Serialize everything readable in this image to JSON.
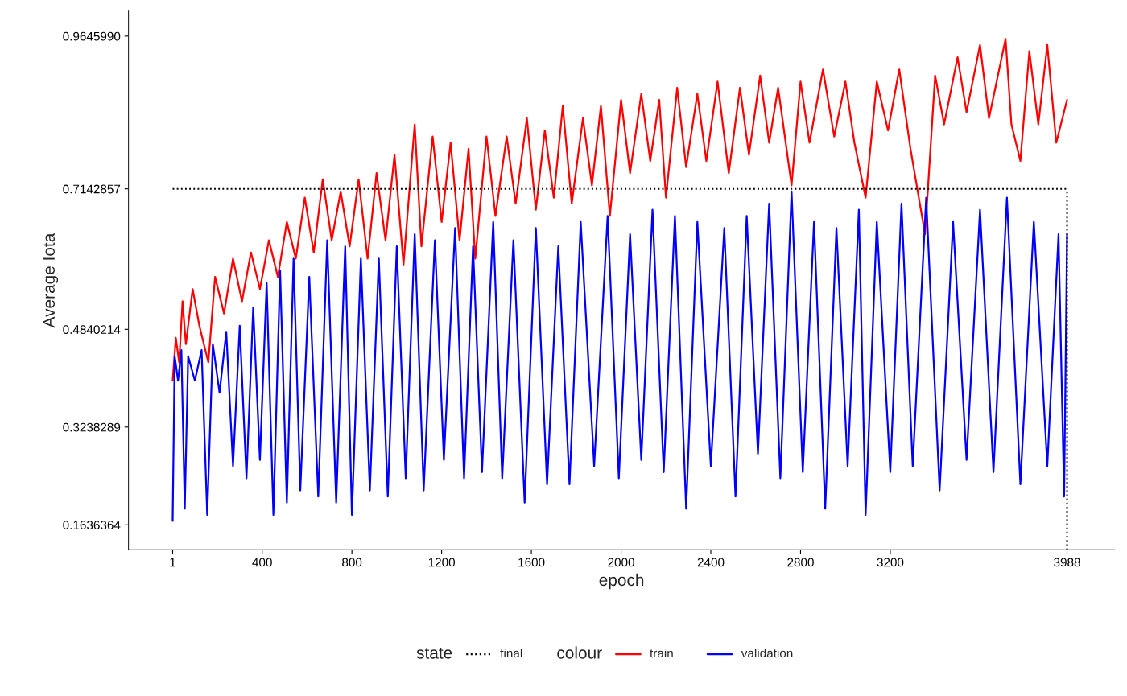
{
  "chart_data": {
    "type": "line",
    "xlabel": "epoch",
    "ylabel": "Average Iota",
    "legend_title": "colour",
    "annotations": [
      "state"
    ],
    "legend": "bottom",
    "grid": false,
    "line_style": "solid",
    "xlim": [
      -196,
      4200
    ],
    "ylim": [
      0.1227,
      1.0055
    ],
    "xticks": [
      1,
      400,
      800,
      1200,
      1600,
      2000,
      2400,
      2800,
      3200,
      3988
    ],
    "yticks": [
      0.1636364,
      0.3238289,
      0.4840214,
      0.7142857,
      {
        "value": 0.964599,
        "label": "0.9645990"
      }
    ],
    "ref_lines": [
      {
        "axis": "y",
        "value": 0.7142857,
        "label": "final",
        "color": "#000000",
        "line_style": "dotted"
      },
      {
        "axis": "x",
        "value": 3988,
        "color": "#000000",
        "line_style": "dotted"
      }
    ],
    "series": [
      {
        "name": "train",
        "color": "#ff0000",
        "x": [
          1,
          15,
          30,
          45,
          60,
          90,
          120,
          160,
          190,
          230,
          270,
          310,
          350,
          390,
          430,
          470,
          510,
          550,
          590,
          630,
          670,
          710,
          750,
          790,
          830,
          870,
          910,
          950,
          990,
          1030,
          1080,
          1110,
          1160,
          1200,
          1240,
          1280,
          1320,
          1350,
          1400,
          1440,
          1490,
          1530,
          1580,
          1620,
          1660,
          1700,
          1740,
          1780,
          1830,
          1870,
          1910,
          1950,
          2000,
          2040,
          2090,
          2130,
          2170,
          2200,
          2250,
          2290,
          2340,
          2380,
          2430,
          2480,
          2530,
          2570,
          2620,
          2660,
          2700,
          2760,
          2800,
          2840,
          2900,
          2950,
          3000,
          3040,
          3090,
          3140,
          3190,
          3240,
          3290,
          3355,
          3400,
          3440,
          3500,
          3540,
          3600,
          3640,
          3714,
          3740,
          3780,
          3820,
          3860,
          3900,
          3940,
          3988
        ],
        "values": [
          0.4,
          0.47,
          0.43,
          0.53,
          0.46,
          0.55,
          0.49,
          0.43,
          0.57,
          0.51,
          0.6,
          0.53,
          0.61,
          0.55,
          0.63,
          0.57,
          0.66,
          0.6,
          0.7,
          0.61,
          0.73,
          0.63,
          0.71,
          0.62,
          0.73,
          0.6,
          0.74,
          0.63,
          0.77,
          0.59,
          0.82,
          0.62,
          0.8,
          0.66,
          0.79,
          0.63,
          0.78,
          0.6,
          0.8,
          0.67,
          0.8,
          0.69,
          0.83,
          0.68,
          0.81,
          0.7,
          0.85,
          0.69,
          0.83,
          0.72,
          0.85,
          0.67,
          0.86,
          0.74,
          0.87,
          0.76,
          0.86,
          0.7,
          0.88,
          0.75,
          0.87,
          0.76,
          0.89,
          0.74,
          0.88,
          0.77,
          0.9,
          0.79,
          0.88,
          0.72,
          0.89,
          0.79,
          0.91,
          0.8,
          0.89,
          0.79,
          0.7,
          0.89,
          0.81,
          0.91,
          0.78,
          0.64,
          0.9,
          0.82,
          0.93,
          0.84,
          0.95,
          0.83,
          0.96,
          0.82,
          0.76,
          0.94,
          0.82,
          0.95,
          0.79,
          0.86
        ]
      },
      {
        "name": "validation",
        "color": "#0000ff",
        "x": [
          1,
          10,
          25,
          40,
          55,
          70,
          100,
          130,
          155,
          180,
          210,
          240,
          270,
          300,
          330,
          360,
          390,
          420,
          450,
          480,
          510,
          540,
          570,
          610,
          650,
          690,
          730,
          770,
          800,
          840,
          880,
          920,
          960,
          1000,
          1040,
          1080,
          1120,
          1170,
          1210,
          1260,
          1300,
          1340,
          1380,
          1430,
          1470,
          1520,
          1570,
          1620,
          1670,
          1720,
          1770,
          1820,
          1880,
          1940,
          1990,
          2040,
          2090,
          2140,
          2190,
          2240,
          2290,
          2340,
          2400,
          2460,
          2510,
          2560,
          2610,
          2660,
          2710,
          2760,
          2810,
          2860,
          2910,
          2960,
          3010,
          3060,
          3090,
          3140,
          3200,
          3250,
          3300,
          3360,
          3420,
          3480,
          3540,
          3600,
          3660,
          3720,
          3780,
          3840,
          3900,
          3950,
          3975,
          3988
        ],
        "values": [
          0.17,
          0.44,
          0.4,
          0.45,
          0.19,
          0.44,
          0.4,
          0.45,
          0.18,
          0.46,
          0.38,
          0.48,
          0.26,
          0.49,
          0.24,
          0.52,
          0.27,
          0.56,
          0.18,
          0.58,
          0.2,
          0.6,
          0.22,
          0.57,
          0.21,
          0.63,
          0.2,
          0.62,
          0.18,
          0.6,
          0.22,
          0.6,
          0.21,
          0.62,
          0.24,
          0.64,
          0.22,
          0.63,
          0.27,
          0.65,
          0.24,
          0.62,
          0.25,
          0.66,
          0.24,
          0.63,
          0.2,
          0.65,
          0.23,
          0.62,
          0.23,
          0.66,
          0.26,
          0.67,
          0.24,
          0.64,
          0.27,
          0.68,
          0.25,
          0.67,
          0.19,
          0.66,
          0.26,
          0.65,
          0.21,
          0.67,
          0.28,
          0.69,
          0.24,
          0.71,
          0.25,
          0.66,
          0.19,
          0.65,
          0.26,
          0.68,
          0.18,
          0.66,
          0.25,
          0.69,
          0.26,
          0.7,
          0.22,
          0.66,
          0.27,
          0.68,
          0.25,
          0.7,
          0.23,
          0.66,
          0.26,
          0.64,
          0.21,
          0.64
        ]
      }
    ]
  }
}
